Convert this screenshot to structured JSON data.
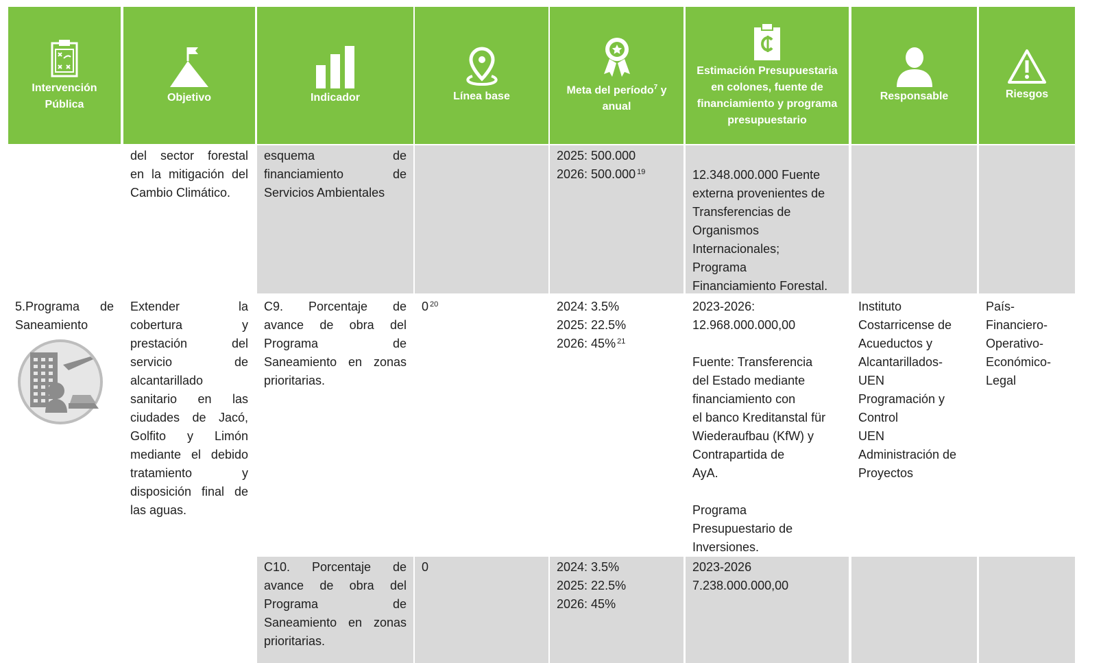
{
  "header": {
    "columns": [
      "Intervención Pública",
      "Objetivo",
      "Indicador",
      "Línea base",
      {
        "text": "Meta del período",
        "sup": "7",
        "after": " y anual"
      },
      "Estimación Presupuestaria en colones, fuente de financiamiento y programa presupuestario",
      "Responsable",
      "Riesgos"
    ]
  },
  "table": {
    "rows": [
      {
        "cells": [
          null,
          {
            "lines": [
              "del sector forestal",
              "en la mitigación del",
              "Cambio Climático."
            ]
          },
          {
            "lines": [
              "esquema de",
              "financiamiento de",
              "Servicios Ambientales"
            ]
          },
          null,
          {
            "lines": [
              "2025: 500.000",
              "2026: 500.000"
            ],
            "sup": "19"
          },
          {
            "lines": [
              "12.348.000.000 Fuente",
              "externa provenientes de",
              "Transferencias de",
              "Organismos",
              "Internacionales;",
              "Programa",
              "Financiamiento Forestal."
            ]
          },
          null,
          null
        ]
      },
      {
        "cells": [
          {
            "lines": [
              "5.Programa de",
              "Saneamiento"
            ]
          },
          {
            "lines": [
              "Extender la",
              "cobertura y",
              "prestación del",
              "servicio de",
              "alcantarillado",
              "sanitario en las",
              "ciudades de Jacó,",
              "Golfito y Limón",
              "mediante el debido",
              "tratamiento y",
              "disposición final de",
              "las aguas."
            ]
          },
          {
            "lines": [
              "C9. Porcentaje de",
              "avance de obra del",
              "Programa de",
              "Saneamiento en zonas",
              "prioritarias."
            ]
          },
          {
            "lines": [
              "0"
            ],
            "sup": "20"
          },
          {
            "lines": [
              "2024: 3.5%",
              "2025: 22.5%",
              "2026: 45%"
            ],
            "sup": "21"
          },
          {
            "paragraphs": [
              [
                "2023-2026:",
                "12.968.000.000,00"
              ],
              [
                "Fuente: Transferencia",
                "del Estado mediante",
                "financiamiento con",
                "el banco Kreditanstal für",
                "Wiederaufbau (KfW) y",
                "Contrapartida de",
                "AyA."
              ],
              [
                "Programa",
                "Presupuestario de",
                "Inversiones."
              ]
            ]
          },
          {
            "lines": [
              "Instituto",
              "Costarricense de",
              "Acueductos y",
              "Alcantarillados-",
              "UEN",
              "Programación y",
              "Control",
              "UEN",
              "Administración de",
              "Proyectos"
            ]
          },
          {
            "lines": [
              "País-",
              "Financiero-",
              "Operativo-",
              "Económico-",
              "Legal"
            ]
          }
        ]
      },
      {
        "cells": [
          {
            "lines": [
              "C10. Porcentaje de",
              "avance de obra del",
              "Programa de",
              "Saneamiento en zonas",
              "prioritarias."
            ]
          },
          {
            "lines": [
              "0"
            ]
          },
          {
            "lines": [
              "2024: 3.5%",
              "2025: 22.5%",
              "2026: 45%"
            ]
          },
          {
            "lines": [
              "2023-2026",
              "7.238.000.000,00"
            ]
          },
          null,
          null
        ]
      }
    ]
  }
}
